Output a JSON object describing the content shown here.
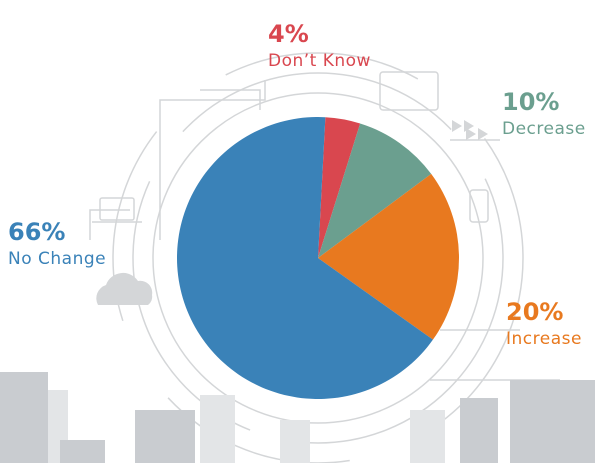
{
  "chart_data": {
    "type": "pie",
    "categories": [
      "Don’t Know",
      "Decrease",
      "Increase",
      "No Change"
    ],
    "values": [
      4,
      10,
      20,
      66
    ],
    "value_labels": [
      "4%",
      "10%",
      "20%",
      "66%"
    ],
    "colors": [
      "#d9474f",
      "#6b9f8f",
      "#e8791f",
      "#3a82b8"
    ]
  }
}
